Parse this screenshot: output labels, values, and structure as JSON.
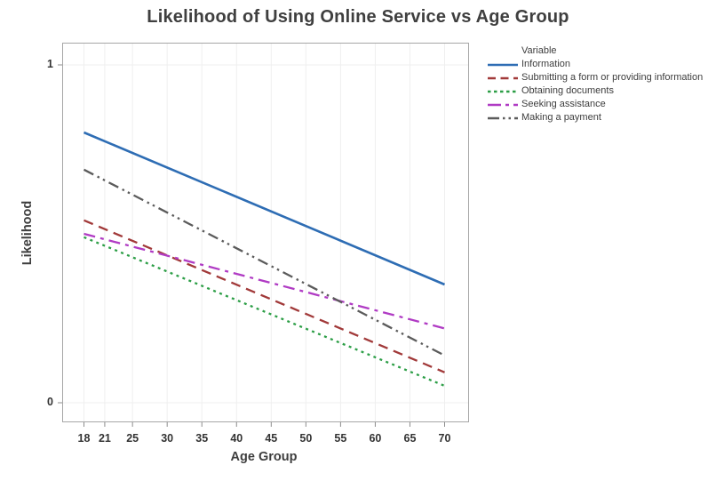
{
  "chart_data": {
    "type": "line",
    "title": "Likelihood of Using Online Service vs Age Group",
    "xlabel": "Age Group",
    "ylabel": "Likelihood",
    "legend_title": "Variable",
    "legend_position": "right",
    "grid": true,
    "x_ticks": [
      18,
      21,
      25,
      30,
      35,
      40,
      45,
      50,
      55,
      60,
      65,
      70
    ],
    "y_ticks": [
      0,
      1
    ],
    "xlim": [
      15,
      73
    ],
    "ylim": [
      -0.06,
      1.07
    ],
    "colors": {
      "border": "#a6a6a6",
      "grid": "#efefef",
      "tick": "#8c8c8c",
      "text": "#3d3d3d",
      "background": "#ffffff"
    },
    "series": [
      {
        "name": "Information",
        "color": "#2e6db4",
        "dash": "solid",
        "x": [
          18,
          70
        ],
        "y": [
          0.8,
          0.35
        ]
      },
      {
        "name": "Submitting a form or providing information",
        "color": "#a13939",
        "dash": "dash",
        "x": [
          18,
          70
        ],
        "y": [
          0.54,
          0.09
        ]
      },
      {
        "name": "Obtaining documents",
        "color": "#2c9e46",
        "dash": "dot",
        "x": [
          18,
          70
        ],
        "y": [
          0.49,
          0.05
        ]
      },
      {
        "name": "Seeking assistance",
        "color": "#b03bc4",
        "dash": "dash-dot",
        "x": [
          18,
          70
        ],
        "y": [
          0.5,
          0.22
        ]
      },
      {
        "name": "Making a payment",
        "color": "#5b5b5b",
        "dash": "dash-dot-dot",
        "x": [
          18,
          70
        ],
        "y": [
          0.69,
          0.14
        ]
      }
    ]
  }
}
